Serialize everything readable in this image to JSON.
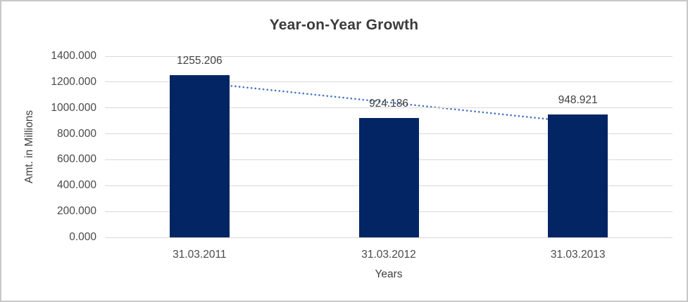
{
  "window": {
    "background": "#ffffff",
    "border_color": "#c8c8c8"
  },
  "chart_data": {
    "type": "bar",
    "title": "Year-on-Year Growth",
    "xlabel": "Years",
    "ylabel": "Amt. in Millions",
    "categories": [
      "31.03.2011",
      "31.03.2012",
      "31.03.2013"
    ],
    "series": [
      {
        "name": "Amt. in Millions",
        "values": [
          1255.206,
          924.186,
          948.921
        ],
        "data_labels": [
          "1255.206",
          "924.186",
          "948.921"
        ],
        "bar_color": "#032564"
      }
    ],
    "ylim": [
      0,
      1400
    ],
    "ytick_step": 200,
    "ytick_labels": [
      "0.000",
      "200.000",
      "400.000",
      "600.000",
      "800.000",
      "1000.000",
      "1200.000",
      "1400.000"
    ],
    "grid": true,
    "legend_position": "none",
    "trendline": {
      "type": "linear",
      "style": "dotted",
      "color": "#4472c4",
      "fit_values": [
        1195.91,
        1042.77,
        889.63
      ]
    },
    "colors": {
      "title_text": "#3b3b3b",
      "axis_text": "#494949",
      "label_text": "#404040",
      "gridline": "#d9d9d9",
      "bar": "#032564"
    }
  }
}
